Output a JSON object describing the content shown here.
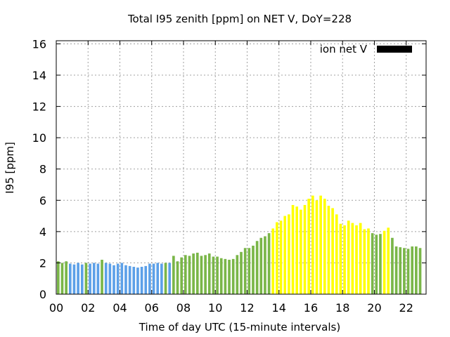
{
  "chart_data": {
    "type": "bar",
    "title": "Total I95 zenith [ppm] on NET V, DoY=228",
    "xlabel": "Time of day UTC (15-minute intervals)",
    "ylabel": "I95 [ppm]",
    "ylim": [
      0,
      16.2
    ],
    "xlim": [
      0,
      23.25
    ],
    "yticks": [
      0,
      2,
      4,
      6,
      8,
      10,
      12,
      14,
      16
    ],
    "xticks": [
      0,
      2,
      4,
      6,
      8,
      10,
      12,
      14,
      16,
      18,
      20,
      22
    ],
    "xtick_labels": [
      "00",
      "02",
      "04",
      "06",
      "08",
      "10",
      "12",
      "14",
      "16",
      "18",
      "20",
      "22"
    ],
    "grid": true,
    "legend": {
      "position": "top-right",
      "label": "ion net V",
      "color": "#000000"
    },
    "bar_interval_hours": 0.25,
    "colors": {
      "blue": "#5ca0e8",
      "green": "#7ab648",
      "yellow": "#ffff00"
    },
    "bars": [
      {
        "x": 0.0,
        "value": 2.1,
        "c": "green"
      },
      {
        "x": 0.25,
        "value": 2.0,
        "c": "green"
      },
      {
        "x": 0.5,
        "value": 2.1,
        "c": "green"
      },
      {
        "x": 0.75,
        "value": 1.95,
        "c": "blue"
      },
      {
        "x": 1.0,
        "value": 1.9,
        "c": "blue"
      },
      {
        "x": 1.25,
        "value": 2.0,
        "c": "blue"
      },
      {
        "x": 1.5,
        "value": 1.9,
        "c": "blue"
      },
      {
        "x": 1.75,
        "value": 2.0,
        "c": "green"
      },
      {
        "x": 2.0,
        "value": 1.95,
        "c": "blue"
      },
      {
        "x": 2.25,
        "value": 2.0,
        "c": "blue"
      },
      {
        "x": 2.5,
        "value": 1.95,
        "c": "blue"
      },
      {
        "x": 2.75,
        "value": 2.2,
        "c": "green"
      },
      {
        "x": 3.0,
        "value": 2.0,
        "c": "blue"
      },
      {
        "x": 3.25,
        "value": 1.95,
        "c": "blue"
      },
      {
        "x": 3.5,
        "value": 1.85,
        "c": "blue"
      },
      {
        "x": 3.75,
        "value": 1.95,
        "c": "blue"
      },
      {
        "x": 4.0,
        "value": 2.0,
        "c": "blue"
      },
      {
        "x": 4.25,
        "value": 1.85,
        "c": "blue"
      },
      {
        "x": 4.5,
        "value": 1.8,
        "c": "blue"
      },
      {
        "x": 4.75,
        "value": 1.75,
        "c": "blue"
      },
      {
        "x": 5.0,
        "value": 1.7,
        "c": "blue"
      },
      {
        "x": 5.25,
        "value": 1.75,
        "c": "blue"
      },
      {
        "x": 5.5,
        "value": 1.8,
        "c": "blue"
      },
      {
        "x": 5.75,
        "value": 1.95,
        "c": "blue"
      },
      {
        "x": 6.0,
        "value": 1.95,
        "c": "blue"
      },
      {
        "x": 6.25,
        "value": 2.0,
        "c": "blue"
      },
      {
        "x": 6.5,
        "value": 1.95,
        "c": "blue"
      },
      {
        "x": 6.75,
        "value": 2.0,
        "c": "green"
      },
      {
        "x": 7.0,
        "value": 2.0,
        "c": "blue"
      },
      {
        "x": 7.25,
        "value": 2.45,
        "c": "green"
      },
      {
        "x": 7.5,
        "value": 2.1,
        "c": "green"
      },
      {
        "x": 7.75,
        "value": 2.35,
        "c": "green"
      },
      {
        "x": 8.0,
        "value": 2.5,
        "c": "green"
      },
      {
        "x": 8.25,
        "value": 2.45,
        "c": "green"
      },
      {
        "x": 8.5,
        "value": 2.6,
        "c": "green"
      },
      {
        "x": 8.75,
        "value": 2.65,
        "c": "green"
      },
      {
        "x": 9.0,
        "value": 2.45,
        "c": "green"
      },
      {
        "x": 9.25,
        "value": 2.5,
        "c": "green"
      },
      {
        "x": 9.5,
        "value": 2.6,
        "c": "green"
      },
      {
        "x": 9.75,
        "value": 2.4,
        "c": "green"
      },
      {
        "x": 10.0,
        "value": 2.4,
        "c": "green"
      },
      {
        "x": 10.25,
        "value": 2.3,
        "c": "green"
      },
      {
        "x": 10.5,
        "value": 2.25,
        "c": "green"
      },
      {
        "x": 10.75,
        "value": 2.2,
        "c": "green"
      },
      {
        "x": 11.0,
        "value": 2.25,
        "c": "green"
      },
      {
        "x": 11.25,
        "value": 2.5,
        "c": "green"
      },
      {
        "x": 11.5,
        "value": 2.7,
        "c": "green"
      },
      {
        "x": 11.75,
        "value": 2.95,
        "c": "green"
      },
      {
        "x": 12.0,
        "value": 2.95,
        "c": "green"
      },
      {
        "x": 12.25,
        "value": 3.1,
        "c": "green"
      },
      {
        "x": 12.5,
        "value": 3.4,
        "c": "green"
      },
      {
        "x": 12.75,
        "value": 3.6,
        "c": "green"
      },
      {
        "x": 13.0,
        "value": 3.7,
        "c": "green"
      },
      {
        "x": 13.25,
        "value": 3.9,
        "c": "green"
      },
      {
        "x": 13.5,
        "value": 4.2,
        "c": "yellow"
      },
      {
        "x": 13.75,
        "value": 4.6,
        "c": "yellow"
      },
      {
        "x": 14.0,
        "value": 4.7,
        "c": "yellow"
      },
      {
        "x": 14.25,
        "value": 5.0,
        "c": "yellow"
      },
      {
        "x": 14.5,
        "value": 5.1,
        "c": "yellow"
      },
      {
        "x": 14.75,
        "value": 5.7,
        "c": "yellow"
      },
      {
        "x": 15.0,
        "value": 5.6,
        "c": "yellow"
      },
      {
        "x": 15.25,
        "value": 5.4,
        "c": "yellow"
      },
      {
        "x": 15.5,
        "value": 5.7,
        "c": "yellow"
      },
      {
        "x": 15.75,
        "value": 6.1,
        "c": "yellow"
      },
      {
        "x": 16.0,
        "value": 6.3,
        "c": "yellow"
      },
      {
        "x": 16.25,
        "value": 6.0,
        "c": "yellow"
      },
      {
        "x": 16.5,
        "value": 6.3,
        "c": "yellow"
      },
      {
        "x": 16.75,
        "value": 6.1,
        "c": "yellow"
      },
      {
        "x": 17.0,
        "value": 5.65,
        "c": "yellow"
      },
      {
        "x": 17.25,
        "value": 5.5,
        "c": "yellow"
      },
      {
        "x": 17.5,
        "value": 5.1,
        "c": "yellow"
      },
      {
        "x": 17.75,
        "value": 4.5,
        "c": "yellow"
      },
      {
        "x": 18.0,
        "value": 4.4,
        "c": "yellow"
      },
      {
        "x": 18.25,
        "value": 4.7,
        "c": "yellow"
      },
      {
        "x": 18.5,
        "value": 4.55,
        "c": "yellow"
      },
      {
        "x": 18.75,
        "value": 4.4,
        "c": "yellow"
      },
      {
        "x": 19.0,
        "value": 4.55,
        "c": "yellow"
      },
      {
        "x": 19.25,
        "value": 4.15,
        "c": "yellow"
      },
      {
        "x": 19.5,
        "value": 4.2,
        "c": "yellow"
      },
      {
        "x": 19.75,
        "value": 3.9,
        "c": "green"
      },
      {
        "x": 20.0,
        "value": 3.8,
        "c": "green"
      },
      {
        "x": 20.25,
        "value": 3.85,
        "c": "green"
      },
      {
        "x": 20.5,
        "value": 4.05,
        "c": "yellow"
      },
      {
        "x": 20.75,
        "value": 4.25,
        "c": "yellow"
      },
      {
        "x": 21.0,
        "value": 3.6,
        "c": "green"
      },
      {
        "x": 21.25,
        "value": 3.05,
        "c": "green"
      },
      {
        "x": 21.5,
        "value": 3.0,
        "c": "green"
      },
      {
        "x": 21.75,
        "value": 2.95,
        "c": "green"
      },
      {
        "x": 22.0,
        "value": 2.9,
        "c": "green"
      },
      {
        "x": 22.25,
        "value": 3.05,
        "c": "green"
      },
      {
        "x": 22.5,
        "value": 3.05,
        "c": "green"
      },
      {
        "x": 22.75,
        "value": 2.95,
        "c": "green"
      }
    ]
  }
}
